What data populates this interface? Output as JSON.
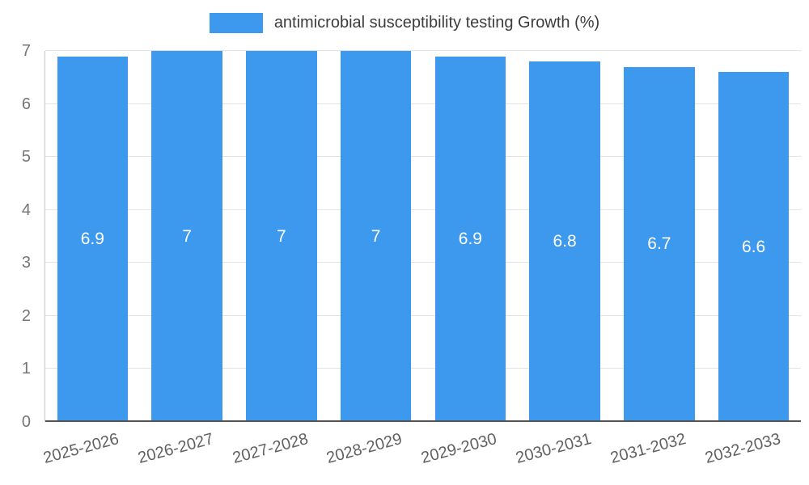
{
  "chart_data": {
    "type": "bar",
    "title": "",
    "legend": {
      "position": "top",
      "label": "antimicrobial susceptibility testing Growth (%)"
    },
    "categories": [
      "2025-2026",
      "2026-2027",
      "2027-2028",
      "2028-2029",
      "2029-2030",
      "2030-2031",
      "2031-2032",
      "2032-2033"
    ],
    "values": [
      6.9,
      7,
      7,
      7,
      6.9,
      6.8,
      6.7,
      6.6
    ],
    "value_labels": [
      "6.9",
      "7",
      "7",
      "7",
      "6.9",
      "6.8",
      "6.7",
      "6.6"
    ],
    "xlabel": "",
    "ylabel": "",
    "ylim": [
      0,
      7
    ],
    "yticks": [
      0,
      1,
      2,
      3,
      4,
      5,
      6,
      7
    ],
    "grid": true,
    "colors": {
      "bar": "#3D99ED",
      "bar_value_text": "#ffffff",
      "gridline": "#e3e3e3",
      "axis_line": "#545454",
      "tick_text": "#757575",
      "legend_text": "#3c3c3c"
    }
  }
}
